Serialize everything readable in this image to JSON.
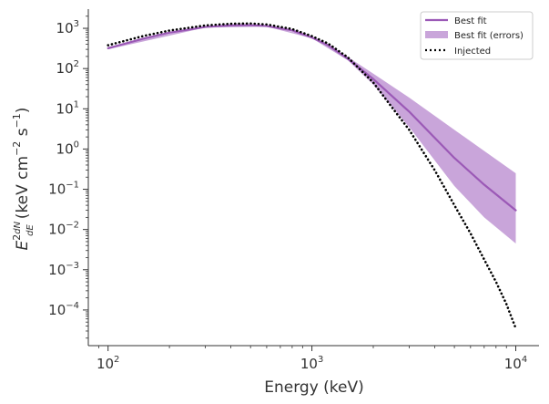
{
  "chart_data": {
    "type": "line",
    "xlabel": "Energy (keV)",
    "ylabel_main": "E",
    "ylabel_sup": "2",
    "ylabel_frac_num": "dN",
    "ylabel_frac_den": "dE",
    "ylabel_units": "(keV cm",
    "ylabel_units_sup": "−2",
    "ylabel_units_mid": " s",
    "ylabel_units_sup2": "−1",
    "ylabel_units_end": ")",
    "x_scale": "log",
    "y_scale": "log",
    "xlim": [
      80,
      13000
    ],
    "ylim": [
      1.3e-05,
      3000
    ],
    "x_ticks": [
      {
        "value": 100,
        "base": "10",
        "exp": "2"
      },
      {
        "value": 1000,
        "base": "10",
        "exp": "3"
      },
      {
        "value": 10000,
        "base": "10",
        "exp": "4"
      }
    ],
    "y_ticks": [
      {
        "value": 0.0001,
        "base": "10",
        "exp": "−4"
      },
      {
        "value": 0.001,
        "base": "10",
        "exp": "−3"
      },
      {
        "value": 0.01,
        "base": "10",
        "exp": "−2"
      },
      {
        "value": 0.1,
        "base": "10",
        "exp": "−1"
      },
      {
        "value": 1,
        "base": "10",
        "exp": "0"
      },
      {
        "value": 10,
        "base": "10",
        "exp": "1"
      },
      {
        "value": 100,
        "base": "10",
        "exp": "2"
      },
      {
        "value": 1000,
        "base": "10",
        "exp": "3"
      }
    ],
    "legend_position": "top-right",
    "series": [
      {
        "name": "Best fit",
        "style": "line",
        "color": "#9b59b6",
        "x": [
          100,
          150,
          200,
          300,
          400,
          500,
          600,
          800,
          1000,
          1200,
          1500,
          2000,
          3000,
          5000,
          7000,
          10000
        ],
        "y": [
          320,
          560,
          780,
          1080,
          1190,
          1200,
          1140,
          890,
          590,
          380,
          175,
          55,
          8.5,
          0.6,
          0.13,
          0.03
        ]
      },
      {
        "name": "Best fit (errors)",
        "style": "band",
        "color": "#c9a5da",
        "x": [
          100,
          300,
          600,
          1000,
          1500,
          2000,
          3000,
          5000,
          7000,
          10000
        ],
        "y_upper": [
          345,
          1120,
          1180,
          620,
          195,
          75,
          19,
          3.0,
          0.9,
          0.25
        ],
        "y_lower": [
          300,
          1040,
          1100,
          565,
          160,
          40,
          3.5,
          0.12,
          0.02,
          0.0045
        ]
      },
      {
        "name": "Injected",
        "style": "dotted",
        "color": "#000000",
        "x": [
          100,
          150,
          200,
          300,
          400,
          500,
          600,
          800,
          1000,
          1200,
          1500,
          2000,
          2500,
          3000,
          4000,
          5000,
          6000,
          7000,
          8000,
          9000,
          10000
        ],
        "y": [
          380,
          650,
          880,
          1180,
          1300,
          1320,
          1250,
          960,
          640,
          420,
          190,
          45,
          10,
          3,
          0.3,
          0.04,
          0.008,
          0.0018,
          0.0005,
          0.00014,
          3.5e-05
        ]
      }
    ]
  }
}
